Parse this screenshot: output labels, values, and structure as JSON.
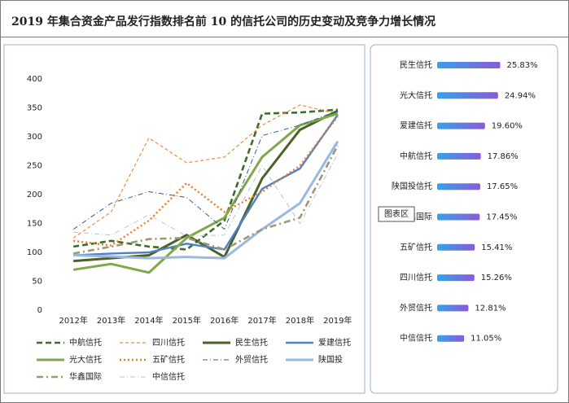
{
  "tooltip": "图表区",
  "chart_data": [
    {
      "type": "line",
      "title": "2019 年集合资金产品发行指数排名前 10 的信托公司的历史变动及竞争力增长情况",
      "categories": [
        "2012年",
        "2013年",
        "2014年",
        "2015年",
        "2016年",
        "2017年",
        "2018年",
        "2019年"
      ],
      "ylim": [
        0,
        400
      ],
      "yticks": [
        0,
        50,
        100,
        150,
        200,
        250,
        300,
        350,
        400
      ],
      "grid": false,
      "series": [
        {
          "name": "中航信托",
          "color": "#3e6b2a",
          "style": "dashed-thick",
          "values": [
            110,
            120,
            110,
            105,
            155,
            340,
            342,
            347
          ]
        },
        {
          "name": "四川信托",
          "color": "#f08a3c",
          "style": "dashed-thin",
          "values": [
            125,
            170,
            298,
            255,
            265,
            320,
            355,
            340
          ]
        },
        {
          "name": "民生信托",
          "color": "#4a6128",
          "style": "solid-thick",
          "values": [
            85,
            90,
            95,
            130,
            92,
            228,
            312,
            345
          ]
        },
        {
          "name": "爱建信托",
          "color": "#4f81c7",
          "style": "solid",
          "values": [
            95,
            98,
            100,
            115,
            105,
            210,
            245,
            338
          ]
        },
        {
          "name": "光大信托",
          "color": "#7fa84a",
          "style": "solid-thick",
          "values": [
            70,
            80,
            65,
            125,
            160,
            265,
            320,
            340
          ]
        },
        {
          "name": "五矿信托",
          "color": "#f07a22",
          "style": "dotted",
          "values": [
            120,
            112,
            155,
            220,
            170,
            205,
            250,
            335
          ]
        },
        {
          "name": "外贸信托",
          "color": "#3a5a8a",
          "style": "dashdot-thin",
          "values": [
            140,
            185,
            205,
            195,
            140,
            302,
            320,
            345
          ]
        },
        {
          "name": "陕国投",
          "color": "#9ab8e0",
          "style": "solid-thick",
          "values": [
            95,
            93,
            90,
            92,
            90,
            140,
            185,
            292
          ]
        },
        {
          "name": "华鑫国际",
          "color": "#9a9a72",
          "style": "dashdot",
          "values": [
            98,
            110,
            123,
            125,
            105,
            140,
            160,
            285
          ]
        },
        {
          "name": "中信信托",
          "color": "#b8c4d8",
          "style": "dashdot-thin",
          "values": [
            135,
            130,
            165,
            128,
            130,
            250,
            150,
            270
          ]
        }
      ]
    },
    {
      "type": "hbar",
      "colors": [
        "#36a2ea",
        "#8a5ad8"
      ],
      "categories": [
        "民生信托",
        "光大信托",
        "爱建信托",
        "中航信托",
        "陕国投信托",
        "华鑫国际",
        "五矿信托",
        "四川信托",
        "外贸信托",
        "中信信托"
      ],
      "values": [
        25.83,
        24.94,
        19.6,
        17.86,
        17.65,
        17.45,
        15.41,
        15.26,
        12.81,
        11.05
      ],
      "value_labels": [
        "25.83%",
        "24.94%",
        "19.60%",
        "17.86%",
        "17.65%",
        "17.45%",
        "15.41%",
        "15.26%",
        "12.81%",
        "11.05%"
      ]
    }
  ]
}
